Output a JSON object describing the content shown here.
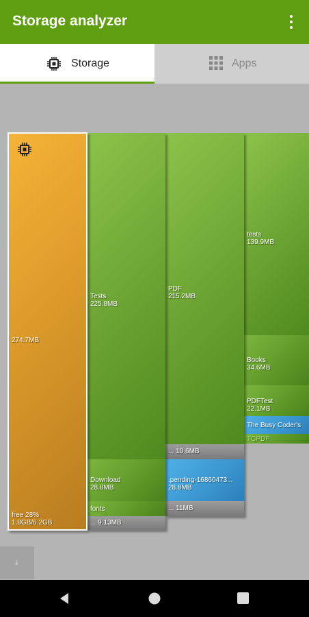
{
  "app": {
    "title": "Storage analyzer"
  },
  "tabs": [
    {
      "label": "Storage",
      "icon": "chip-icon",
      "active": true
    },
    {
      "label": "Apps",
      "icon": "grid-icon",
      "active": false
    }
  ],
  "colors": {
    "accent": "#5e9e10",
    "folder": "#6aa232",
    "file": "#3b95cf",
    "small": "#8c8c8c",
    "root": "#dc9a2a"
  },
  "storage": {
    "root": {
      "size": "274.7MB",
      "free_label": "free 28%",
      "usage": "1.8GB/6.2GB",
      "icon": "chip-icon"
    },
    "folders": {
      "tests_cap": {
        "name": "Tests",
        "size": "225.8MB"
      },
      "download": {
        "name": "Download",
        "size": "28.8MB"
      },
      "fonts": {
        "name": "fonts"
      },
      "misc1": {
        "name": "...",
        "size": "9.13MB"
      },
      "pdf": {
        "name": "PDF",
        "size": "215.2MB"
      },
      "pdf_misc": {
        "name": "...",
        "size": "10.6MB"
      },
      "pending": {
        "name": ".pending-16860473...",
        "size": "28.8MB"
      },
      "misc2": {
        "name": "...",
        "size": "11MB"
      },
      "tests_low": {
        "name": "tests",
        "size": "139.9MB"
      },
      "books": {
        "name": "Books",
        "size": "34.6MB"
      },
      "pdftest": {
        "name": "PDFTest",
        "size": "22.1MB"
      },
      "busy_coder": {
        "name": "The Busy Coder's"
      },
      "tcpdf": {
        "name": "TCPDF"
      }
    }
  },
  "bottom_tool": {
    "label": "⤓"
  }
}
